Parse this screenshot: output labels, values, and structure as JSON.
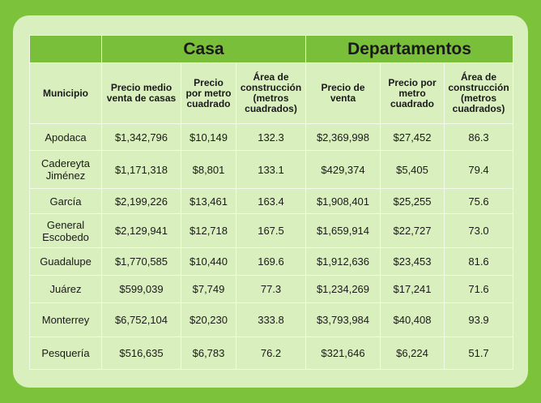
{
  "groups": {
    "casa": "Casa",
    "departamentos": "Departamentos"
  },
  "headers": {
    "municipio": "Municipio",
    "casa_precio": "Precio medio venta de casas",
    "casa_m2": "Precio por metro cuadrado",
    "casa_area": "Área de construcción (metros cuadrados)",
    "depto_precio": "Precio de venta",
    "depto_m2": "Precio por metro cuadrado",
    "depto_area": "Área de construcción (metros cuadrados)"
  },
  "rows": [
    {
      "municipio": "Apodaca",
      "casa_precio": "$1,342,796",
      "casa_m2": "$10,149",
      "casa_area": "132.3",
      "depto_precio": "$2,369,998",
      "depto_m2": "$27,452",
      "depto_area": "86.3"
    },
    {
      "municipio": "Cadereyta Jiménez",
      "casa_precio": "$1,171,318",
      "casa_m2": "$8,801",
      "casa_area": "133.1",
      "depto_precio": "$429,374",
      "depto_m2": "$5,405",
      "depto_area": "79.4"
    },
    {
      "municipio": "García",
      "casa_precio": "$2,199,226",
      "casa_m2": "$13,461",
      "casa_area": "163.4",
      "depto_precio": "$1,908,401",
      "depto_m2": "$25,255",
      "depto_area": "75.6"
    },
    {
      "municipio": "General Escobedo",
      "casa_precio": "$2,129,941",
      "casa_m2": "$12,718",
      "casa_area": "167.5",
      "depto_precio": "$1,659,914",
      "depto_m2": "$22,727",
      "depto_area": "73.0"
    },
    {
      "municipio": "Guadalupe",
      "casa_precio": "$1,770,585",
      "casa_m2": "$10,440",
      "casa_area": "169.6",
      "depto_precio": "$1,912,636",
      "depto_m2": "$23,453",
      "depto_area": "81.6"
    },
    {
      "municipio": "Juárez",
      "casa_precio": "$599,039",
      "casa_m2": "$7,749",
      "casa_area": "77.3",
      "depto_precio": "$1,234,269",
      "depto_m2": "$17,241",
      "depto_area": "71.6"
    },
    {
      "municipio": "Monterrey",
      "casa_precio": "$6,752,104",
      "casa_m2": "$20,230",
      "casa_area": "333.8",
      "depto_precio": "$3,793,984",
      "depto_m2": "$40,408",
      "depto_area": "93.9"
    },
    {
      "municipio": "Pesquería",
      "casa_precio": "$516,635",
      "casa_m2": "$6,783",
      "casa_area": "76.2",
      "depto_precio": "$321,646",
      "depto_m2": "$6,224",
      "depto_area": "51.7"
    }
  ]
}
